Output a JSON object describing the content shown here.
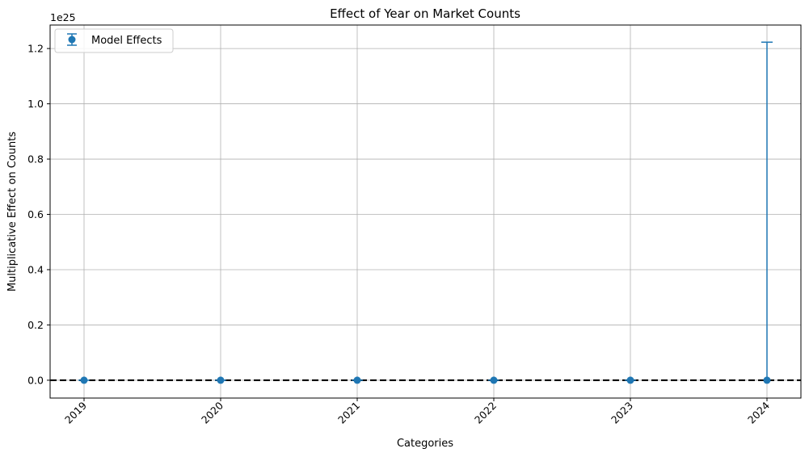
{
  "chart_data": {
    "type": "scatter",
    "title": "Effect of Year on Market Counts",
    "xlabel": "Categories",
    "ylabel": "Multiplicative Effect on Counts",
    "y_offset_label": "1e25",
    "y_scale_exponent": 25,
    "categories": [
      "2019",
      "2020",
      "2021",
      "2022",
      "2023",
      "2024"
    ],
    "ylim": [
      -0.0645,
      1.285
    ],
    "yticks": [
      0.0,
      0.2,
      0.4,
      0.6,
      0.8,
      1.0,
      1.2
    ],
    "ytick_labels": [
      "0.0",
      "0.2",
      "0.4",
      "0.6",
      "0.8",
      "1.0",
      "1.2"
    ],
    "reference_line": {
      "y": 0,
      "style": "dashed",
      "color": "#000000"
    },
    "grid": true,
    "legend_position": "upper-left",
    "series": [
      {
        "name": "Model Effects",
        "color": "#1f77b4",
        "values": [
          0,
          0,
          0,
          0,
          0,
          0
        ],
        "error_upper": [
          0,
          0,
          0,
          0,
          0,
          1.223
        ],
        "error_lower": [
          0,
          0,
          0,
          0,
          0,
          0
        ]
      }
    ]
  }
}
